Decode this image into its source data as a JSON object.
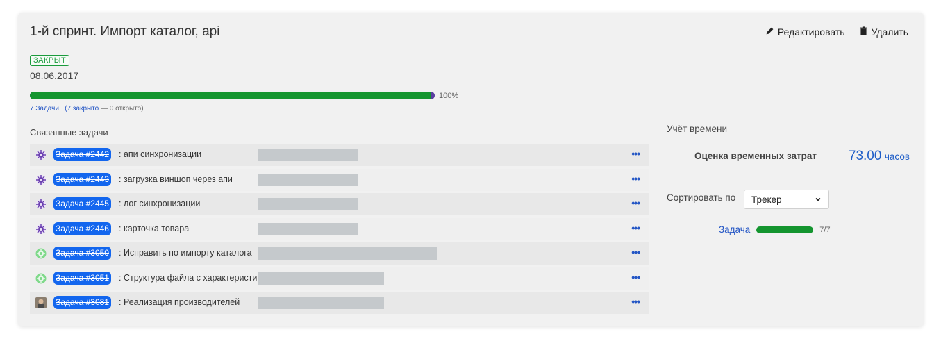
{
  "sprint": {
    "title": "1-й спринт. Импорт каталог, api",
    "status": "ЗАКРЫТ",
    "date": "08.06.2017",
    "progress_percent": 100,
    "progress_label": "100%",
    "counts": {
      "tasks_link": "7 Задачи",
      "closed_link": "(7 закрыто",
      "open_text": " — 0 открыто)"
    }
  },
  "actions": {
    "edit_label": "Редактировать",
    "delete_label": "Удалить"
  },
  "related": {
    "title": "Связанные задачи",
    "tasks": [
      {
        "id": "Задача #2442",
        "name": ": апи синхронизации",
        "icon": "gear-purple-icon"
      },
      {
        "id": "Задача #2443",
        "name": ": загрузка виншоп через апи",
        "icon": "gear-purple-icon"
      },
      {
        "id": "Задача #2445",
        "name": ": лог синхронизации",
        "icon": "gear-purple-icon"
      },
      {
        "id": "Задача #2446",
        "name": ": карточка товара",
        "icon": "gear-purple-icon"
      },
      {
        "id": "Задача #3050",
        "name": ": Исправить по импорту каталога",
        "icon": "gear-green-icon"
      },
      {
        "id": "Задача #3051",
        "name": ": Структура файла с характеристи",
        "icon": "gear-green-icon"
      },
      {
        "id": "Задача #3081",
        "name": ": Реализация производителей",
        "icon": "avatar-icon"
      }
    ],
    "more_label": "•••"
  },
  "time_tracking": {
    "title": "Учёт времени",
    "estimate_label": "Оценка временных затрат",
    "estimate_value": "73.00",
    "estimate_unit": "часов"
  },
  "sort": {
    "label": "Сортировать по",
    "selected": "Трекер"
  },
  "group": {
    "label": "Задача",
    "count": "7/7",
    "progress_percent": 100
  },
  "colors": {
    "accent_blue": "#1366ee",
    "link_blue": "#2456c5",
    "success_green": "#14952f",
    "progress_track": "#5b3fa0"
  }
}
